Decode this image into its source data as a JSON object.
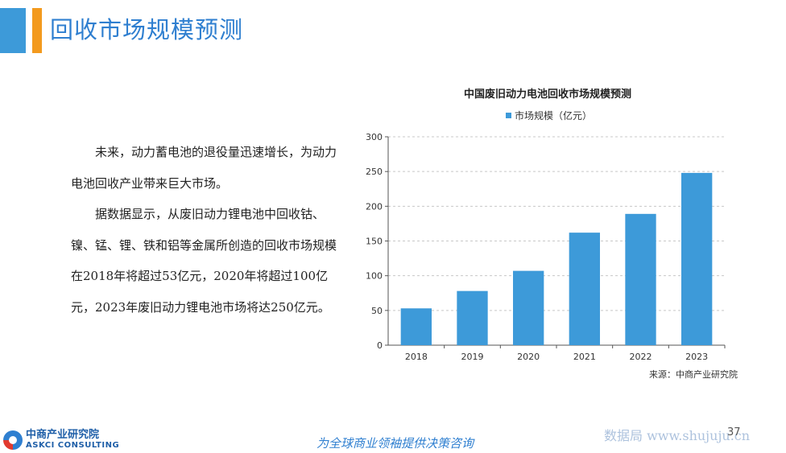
{
  "header": {
    "title": "回收市场规模预测"
  },
  "body": {
    "paragraphs": [
      "未来，动力蓄电池的退役量迅速增长，为动力电池回收产业带来巨大市场。",
      "据数据显示，从废旧动力锂电池中回收钴、镍、锰、锂、铁和铝等金属所创造的回收市场规模在2018年将超过53亿元，2020年将超过100亿元，2023年废旧动力锂电池市场将达250亿元。"
    ]
  },
  "chart_data": {
    "type": "bar",
    "title": "中国废旧动力电池回收市场规模预测",
    "categories": [
      "2018",
      "2019",
      "2020",
      "2021",
      "2022",
      "2023"
    ],
    "series": [
      {
        "name": "市场规模（亿元）",
        "values": [
          53,
          78,
          107,
          162,
          189,
          248
        ],
        "color": "#3d9ad9"
      }
    ],
    "yticks": [
      "0",
      "50",
      "100",
      "150",
      "200",
      "250",
      "300"
    ],
    "ylim": [
      0,
      300
    ],
    "grid": true,
    "legend": "top-center"
  },
  "source": "来源：中商产业研究院",
  "footer": {
    "logo_cn": "中商产业研究院",
    "logo_en": "ASKCI CONSULTING",
    "slogan": "为全球商业领袖提供决策咨询",
    "page_number": "37",
    "watermark": "数据局 www.shujuju.cn"
  }
}
